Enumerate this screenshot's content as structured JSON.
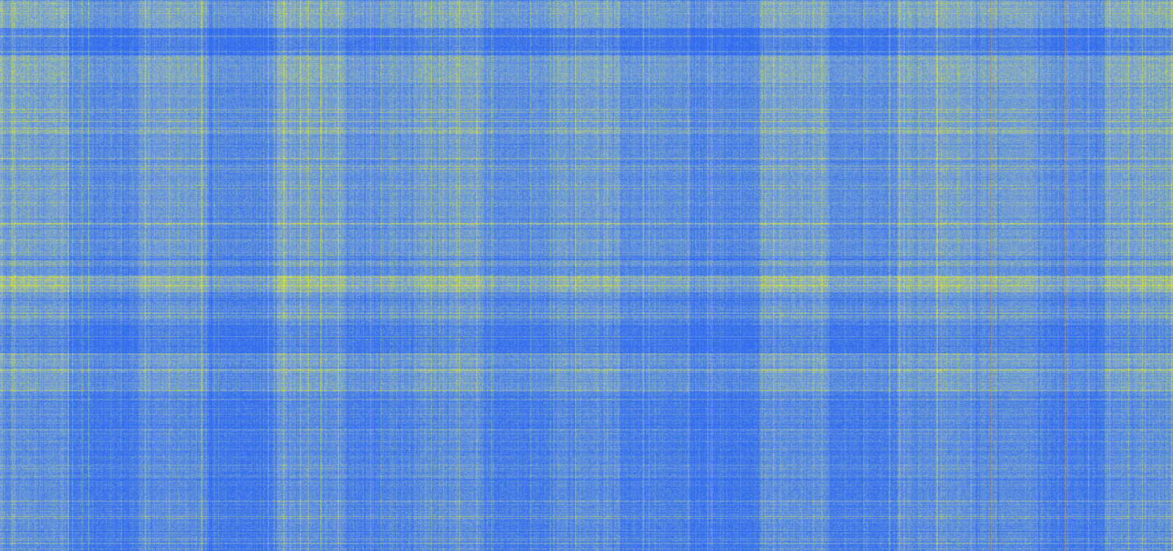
{
  "chart_data": {
    "type": "heatmap",
    "title": "",
    "xlabel": "",
    "ylabel": "",
    "axes_shown": false,
    "legend_shown": false,
    "colorbar_shown": false,
    "colors": {
      "low": "#2f6bf0",
      "mid": "#7fa8d0",
      "high": "#f2f20a",
      "accent_line": "#f0a020"
    },
    "value_range": [
      0,
      1
    ],
    "column_block_pattern": [
      0.55,
      0.25,
      0.5,
      0.22,
      0.55,
      0.35,
      0.55,
      0.3,
      0.5,
      0.3,
      0.2,
      0.55,
      0.25,
      0.55,
      0.5,
      0.3,
      0.55
    ],
    "row_bands": [
      {
        "from": 0.0,
        "to": 0.05,
        "level": 0.7
      },
      {
        "from": 0.05,
        "to": 0.1,
        "level": 0.25
      },
      {
        "from": 0.1,
        "to": 0.15,
        "level": 0.72
      },
      {
        "from": 0.15,
        "to": 0.46,
        "level": 0.58
      },
      {
        "from": 0.46,
        "to": 0.5,
        "level": 0.45
      },
      {
        "from": 0.5,
        "to": 0.53,
        "level": 0.85
      },
      {
        "from": 0.53,
        "to": 0.59,
        "level": 0.48
      },
      {
        "from": 0.59,
        "to": 0.64,
        "level": 0.28
      },
      {
        "from": 0.64,
        "to": 0.71,
        "level": 0.6
      },
      {
        "from": 0.71,
        "to": 1.0,
        "level": 0.35
      }
    ]
  }
}
